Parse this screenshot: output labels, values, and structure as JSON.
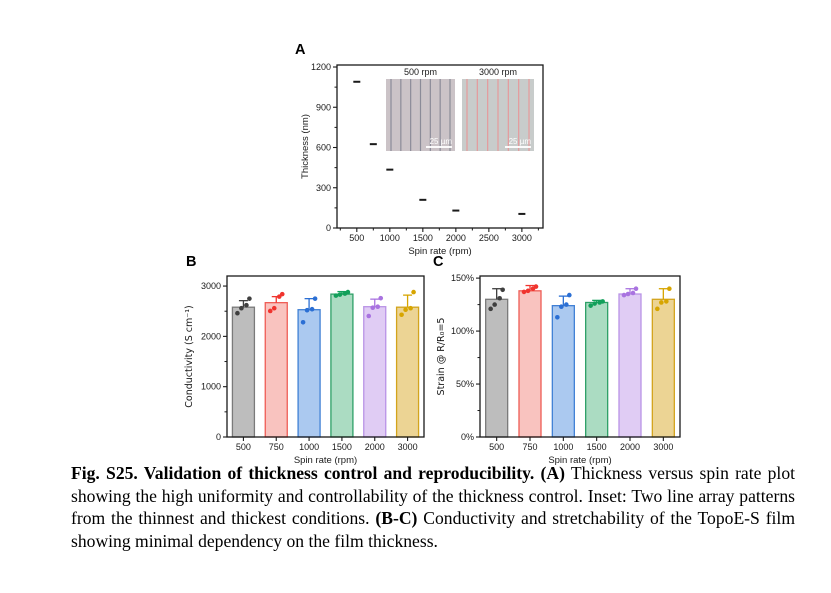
{
  "panels": {
    "a": {
      "label": "A"
    },
    "b": {
      "label": "B"
    },
    "c": {
      "label": "C"
    }
  },
  "chart_data": [
    {
      "id": "thickness_vs_spin_rate",
      "type": "scatter",
      "title": "",
      "xlabel": "Spin rate (rpm)",
      "ylabel": "Thickness (nm)",
      "x": [
        500,
        750,
        1000,
        1500,
        2000,
        3000
      ],
      "y": [
        1090,
        625,
        435,
        210,
        130,
        105
      ],
      "xlim": [
        200,
        3320
      ],
      "ylim": [
        0,
        1215
      ],
      "xticks": [
        500,
        1000,
        1500,
        2000,
        2500,
        3000
      ],
      "yticks": [
        0,
        300,
        600,
        900,
        1200
      ],
      "x_minor_step": 250,
      "y_minor_step": 150,
      "marker": "dash",
      "marker_color": "#1a1a1a",
      "grid": false,
      "insets": [
        {
          "label": "500 rpm",
          "bg": "#cbc3c7",
          "line_color": "#8b8b98",
          "line_count": 7,
          "scale_label": "25 µm"
        },
        {
          "label": "3000 rpm",
          "bg": "#c8cccb",
          "line_color": "#e59a9c",
          "line_count": 7,
          "scale_label": "25 µm"
        }
      ]
    },
    {
      "id": "conductivity_vs_spin_rate",
      "type": "bar",
      "title": "",
      "xlabel": "Spin rate (rpm)",
      "ylabel": "Conductivity (S cm⁻¹)",
      "categories": [
        "500",
        "750",
        "1000",
        "1500",
        "2000",
        "3000"
      ],
      "values": [
        2580,
        2670,
        2530,
        2840,
        2590,
        2580
      ],
      "errors_up": [
        130,
        120,
        220,
        50,
        150,
        240
      ],
      "points": [
        [
          2460,
          2560,
          2620,
          2750
        ],
        [
          2505,
          2560,
          2790,
          2840
        ],
        [
          2280,
          2520,
          2540,
          2750
        ],
        [
          2810,
          2830,
          2850,
          2880
        ],
        [
          2405,
          2570,
          2590,
          2760
        ],
        [
          2430,
          2530,
          2560,
          2880
        ]
      ],
      "bar_fill": [
        "#bdbdbd",
        "#f9c3bf",
        "#abc9f0",
        "#abdcc2",
        "#e0ccf4",
        "#ecd494"
      ],
      "bar_stroke": [
        "#7a7a7a",
        "#ef5c55",
        "#4080d5",
        "#2ea067",
        "#b993e6",
        "#d3a41c"
      ],
      "point_color": [
        "#3f3f3f",
        "#f0342e",
        "#2b6fd4",
        "#12a05a",
        "#a973e0",
        "#d7a500"
      ],
      "ylim": [
        0,
        3200
      ],
      "yticks": [
        0,
        1000,
        2000,
        3000
      ],
      "y_minor_step": 500,
      "ytick_suffix": "",
      "grid": false,
      "legend": "none"
    },
    {
      "id": "strain_vs_spin_rate",
      "type": "bar",
      "title": "",
      "xlabel": "Spin rate (rpm)",
      "ylabel": "Strain @ R/R₀=5",
      "categories": [
        "500",
        "750",
        "1000",
        "1500",
        "2000",
        "3000"
      ],
      "values": [
        130,
        138,
        124,
        127,
        135,
        130
      ],
      "errors_up": [
        10,
        5,
        9,
        2,
        5,
        10
      ],
      "points": [
        [
          121,
          125,
          131,
          139
        ],
        [
          137,
          138,
          140,
          142
        ],
        [
          113,
          123,
          125,
          134
        ],
        [
          124,
          126,
          127,
          128
        ],
        [
          134,
          135,
          136,
          140
        ],
        [
          121,
          127,
          128,
          140
        ]
      ],
      "bar_fill": [
        "#bdbdbd",
        "#f9c3bf",
        "#abc9f0",
        "#abdcc2",
        "#e0ccf4",
        "#ecd494"
      ],
      "bar_stroke": [
        "#7a7a7a",
        "#ef5c55",
        "#4080d5",
        "#2ea067",
        "#b993e6",
        "#d3a41c"
      ],
      "point_color": [
        "#3f3f3f",
        "#f0342e",
        "#2b6fd4",
        "#12a05a",
        "#a973e0",
        "#d7a500"
      ],
      "ylim": [
        0,
        152
      ],
      "yticks": [
        0,
        50,
        100,
        150
      ],
      "y_minor_step": 25,
      "ytick_suffix": "%",
      "grid": false,
      "legend": "none"
    }
  ],
  "caption": {
    "segments": [
      {
        "text": "Fig. S25. Validation of thickness control and reproducibility. (A)",
        "bold": true
      },
      {
        "text": " Thickness versus spin rate plot showing the high uniformity and controllability of the thickness control. Inset: Two line array patterns from the thinnest and thickest conditions. ",
        "bold": false
      },
      {
        "text": "(B-C)",
        "bold": true
      },
      {
        "text": " Conductivity and stretchability of the TopoE-S film showing minimal dependency on the film thickness.",
        "bold": false
      }
    ]
  }
}
